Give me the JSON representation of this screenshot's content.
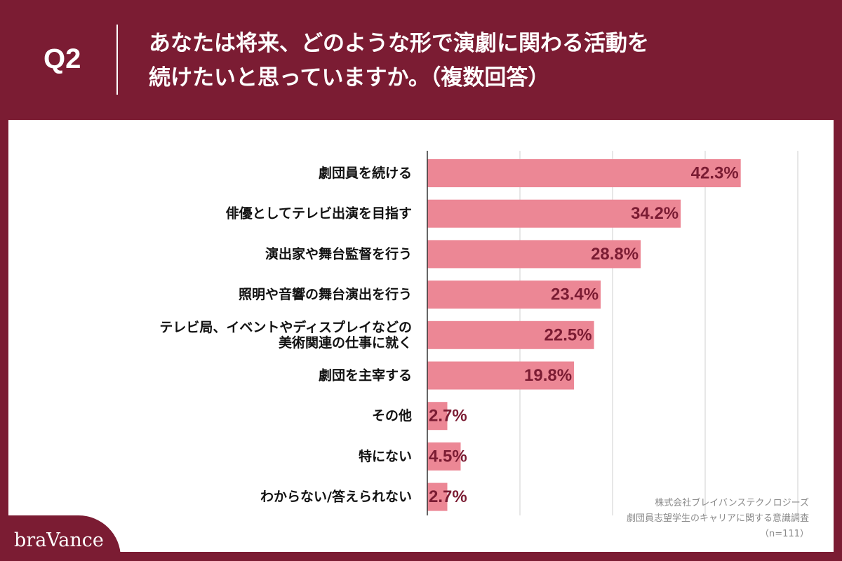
{
  "header": {
    "q_label": "Q2",
    "title_line1": "あなたは将来、どのような形で演劇に関わる活動を",
    "title_line2": "続けたいと思っていますか。（複数回答）"
  },
  "source": {
    "line1": "株式会社ブレイバンステクノロジーズ",
    "line2": "劇団員志望学生のキャリアに関する意識調査",
    "line3": "（n=111）"
  },
  "brand": {
    "name": "braVance"
  },
  "colors": {
    "background": "#7b1c33",
    "bar": "#ec8795",
    "value_text": "#7b1c33",
    "grid": "#cfcfcf"
  },
  "chart_data": {
    "type": "bar",
    "orientation": "horizontal",
    "categories": [
      [
        "劇団員を続ける"
      ],
      [
        "俳優としてテレビ出演を目指す"
      ],
      [
        "演出家や舞台監督を行う"
      ],
      [
        "照明や音響の舞台演出を行う"
      ],
      [
        "テレビ局、イベントやディスプレイなどの",
        "美術関連の仕事に就く"
      ],
      [
        "劇団を主宰する"
      ],
      [
        "その他"
      ],
      [
        "特にない"
      ],
      [
        "わからない/答えられない"
      ]
    ],
    "values": [
      42.3,
      34.2,
      28.8,
      23.4,
      22.5,
      19.8,
      2.7,
      4.5,
      2.7
    ],
    "value_labels": [
      "42.3%",
      "34.2%",
      "28.8%",
      "23.4%",
      "22.5%",
      "19.8%",
      "2.7%",
      "4.5%",
      "2.7%"
    ],
    "xlim": [
      0,
      50
    ],
    "grid_step": 12.5,
    "grid": true
  }
}
